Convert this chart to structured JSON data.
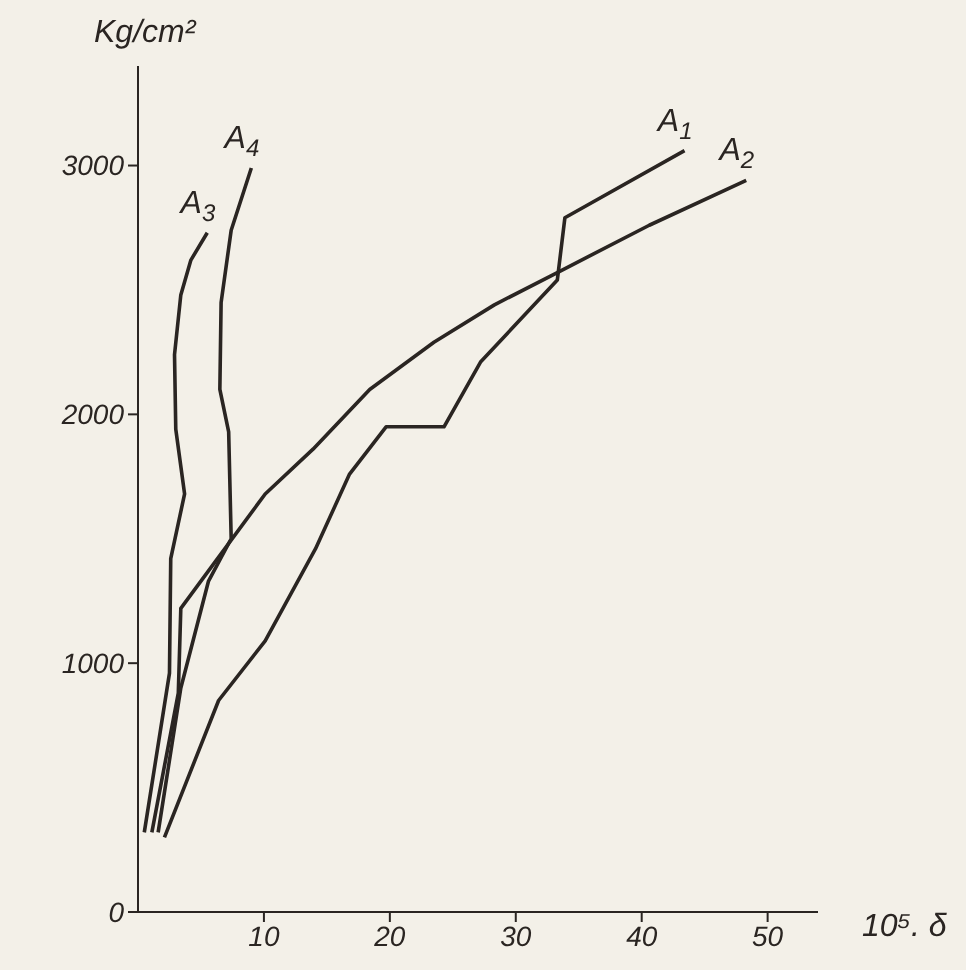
{
  "chart_data": {
    "type": "line",
    "xlabel": "10⁵. δ",
    "ylabel": "Kg/cm²",
    "xlim": [
      0,
      54
    ],
    "ylim": [
      0,
      3400
    ],
    "xticks": [
      10,
      20,
      30,
      40,
      50
    ],
    "yticks": [
      0,
      1000,
      2000,
      3000
    ],
    "marker": "none",
    "line_style": "solid",
    "series": [
      {
        "name": "A$_{1}$",
        "color": "#2a2522",
        "x": [
          2.1,
          6.4,
          10.1,
          14.1,
          16.8,
          19.7,
          24.3,
          27.2,
          33.3,
          33.9,
          43.4
        ],
        "values": [
          300,
          850,
          1090,
          1460,
          1760,
          1950,
          1950,
          2210,
          2540,
          2790,
          3060
        ]
      },
      {
        "name": "A$_{2}$",
        "color": "#2a2522",
        "x": [
          1.1,
          3.2,
          3.4,
          10.1,
          13.9,
          18.4,
          23.5,
          28.3,
          33.3,
          40.6,
          48.3
        ],
        "values": [
          320,
          880,
          1220,
          1680,
          1860,
          2100,
          2290,
          2440,
          2570,
          2760,
          2940
        ]
      },
      {
        "name": "A$_{3}$",
        "color": "#2a2522",
        "x": [
          0.5,
          2.5,
          2.6,
          3.7,
          3.0,
          2.9,
          3.4,
          4.2,
          5.5
        ],
        "values": [
          320,
          960,
          1420,
          1680,
          1940,
          2240,
          2480,
          2620,
          2730
        ]
      },
      {
        "name": "A$_{4}$",
        "color": "#2a2522",
        "x": [
          1.6,
          3.4,
          5.6,
          7.4,
          7.2,
          6.5,
          6.6,
          7.4,
          9.0
        ],
        "values": [
          320,
          900,
          1330,
          1500,
          1930,
          2100,
          2450,
          2740,
          2990
        ]
      }
    ]
  }
}
